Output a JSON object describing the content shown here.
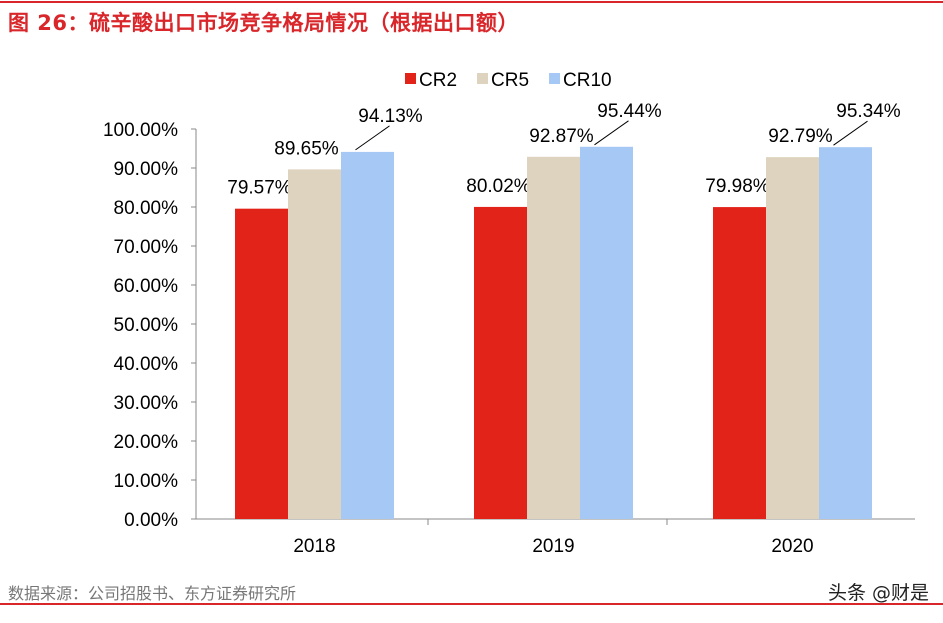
{
  "title": "图 26：硫辛酸出口市场竞争格局情况（根据出口额）",
  "source": "数据来源：公司招股书、东方证券研究所",
  "watermark": "头条 @财是",
  "chart_data": {
    "type": "bar",
    "categories": [
      "2018",
      "2019",
      "2020"
    ],
    "series": [
      {
        "name": "CR2",
        "values": [
          79.57,
          80.02,
          79.98
        ],
        "labels": [
          "79.57%",
          "80.02%",
          "79.98%"
        ],
        "color": "#e2231a"
      },
      {
        "name": "CR5",
        "values": [
          89.65,
          92.87,
          92.79
        ],
        "labels": [
          "89.65%",
          "92.87%",
          "92.79%"
        ],
        "color": "#ddd3bf"
      },
      {
        "name": "CR10",
        "values": [
          94.13,
          95.44,
          95.34
        ],
        "labels": [
          "94.13%",
          "95.44%",
          "95.34%"
        ],
        "color": "#a6c8f5"
      }
    ],
    "ylim": [
      0,
      100
    ],
    "yticks": [
      "0.00%",
      "10.00%",
      "20.00%",
      "30.00%",
      "40.00%",
      "50.00%",
      "60.00%",
      "70.00%",
      "80.00%",
      "90.00%",
      "100.00%"
    ],
    "legend": "top-center",
    "grid": false
  }
}
